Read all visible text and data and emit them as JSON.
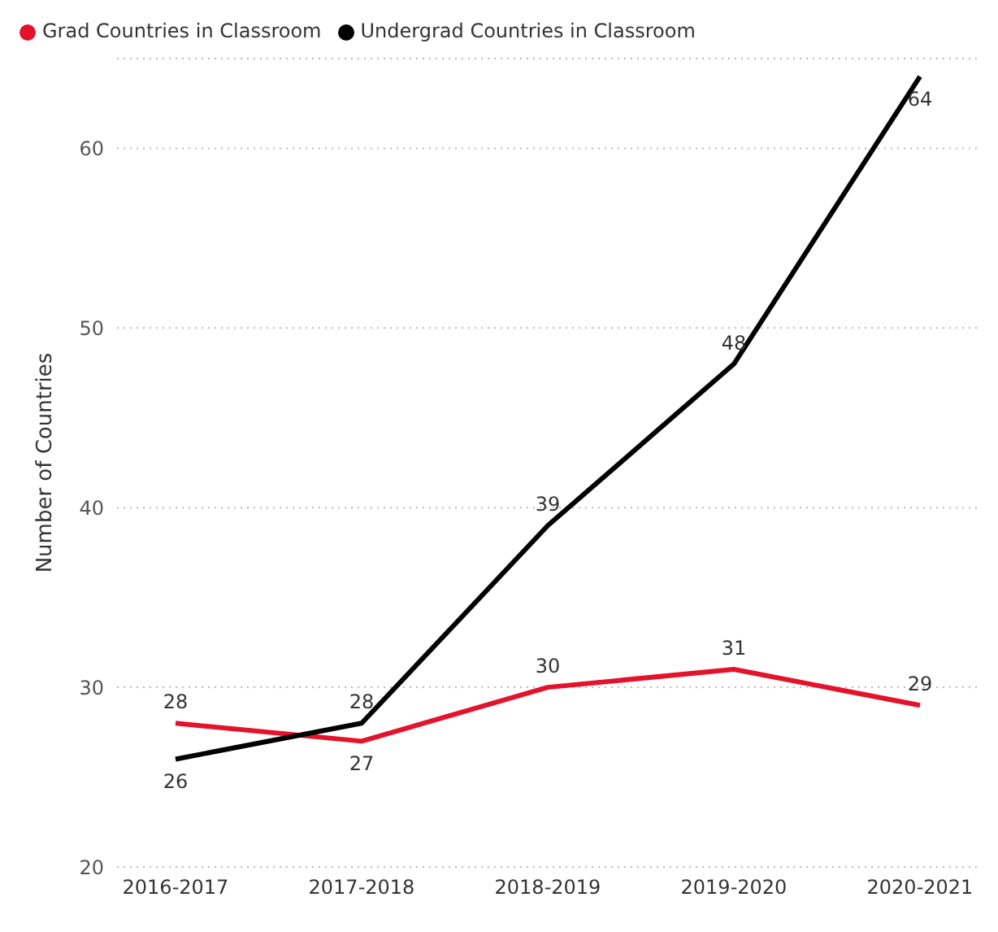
{
  "chart_data": {
    "type": "line",
    "ylabel": "Number of Countries",
    "categories": [
      "2016-2017",
      "2017-2018",
      "2018-2019",
      "2019-2020",
      "2020-2021"
    ],
    "series": [
      {
        "name": "Grad Countries in Classroom",
        "color": "#e3132c",
        "values": [
          28,
          27,
          30,
          31,
          29
        ]
      },
      {
        "name": "Undergrad Countries in Classroom",
        "color": "#000000",
        "values": [
          26,
          28,
          39,
          48,
          64
        ]
      }
    ],
    "ylim": [
      20,
      65
    ],
    "yticks": [
      20,
      30,
      40,
      50,
      60
    ],
    "grid": "y",
    "legend": "top left",
    "data_labels": true,
    "marker": "none",
    "line_style": "solid"
  }
}
